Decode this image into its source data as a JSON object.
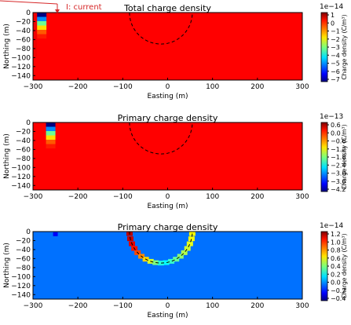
{
  "annotation": {
    "text": "I: current",
    "color": "#d62728"
  },
  "colors": {
    "orange_background": "#ff5a00",
    "dark_orange": "#e8400a",
    "light_blue_background": "#1e8cff",
    "dark_red": "#7f0000"
  },
  "colormap": "jet",
  "chart_data": [
    {
      "type": "heatmap",
      "title": "Total charge density",
      "xlabel": "Easting (m)",
      "ylabel": "Northing (m)",
      "xlim": [
        -300,
        300
      ],
      "ylim": [
        -150,
        0
      ],
      "xticks": [
        "−300",
        "−200",
        "−100",
        "0",
        "100",
        "200",
        "300"
      ],
      "yticks": [
        "0",
        "−20",
        "−40",
        "−60",
        "−80",
        "−100",
        "−120",
        "−140"
      ],
      "colorbar": {
        "label": "Charge density (C/m³)",
        "exponent": "1e−14",
        "range": [
          -7,
          1
        ],
        "ticks": [
          "1",
          "0",
          "−1",
          "−2",
          "−3",
          "−4",
          "−5",
          "−6",
          "−7"
        ]
      },
      "background_value": 0,
      "circle": {
        "center_x": -15,
        "center_y": 0,
        "radius": 70,
        "style": "dashed"
      },
      "features": [
        {
          "name": "current-source",
          "x": -270,
          "y": -10,
          "value": -7
        }
      ]
    },
    {
      "type": "heatmap",
      "title": "Primary charge density",
      "xlabel": "Easting (m)",
      "ylabel": "Northing (m)",
      "xlim": [
        -300,
        300
      ],
      "ylim": [
        -150,
        0
      ],
      "xticks": [
        "−300",
        "−200",
        "−100",
        "0",
        "100",
        "200",
        "300"
      ],
      "yticks": [
        "0",
        "−20",
        "−40",
        "−60",
        "−80",
        "−100",
        "−120",
        "−140"
      ],
      "colorbar": {
        "label": "Charge density (C/m³)",
        "exponent": "1e−13",
        "range": [
          -4.2,
          0.6
        ],
        "ticks": [
          "0.6",
          "0.0",
          "−0.6",
          "−1.2",
          "−1.8",
          "−2.4",
          "−3.0",
          "−3.6",
          "−4.2"
        ]
      },
      "background_value": 0,
      "circle": {
        "center_x": -15,
        "center_y": 0,
        "radius": 70,
        "style": "dashed"
      },
      "features": [
        {
          "name": "current-source",
          "x": -250,
          "y": -5,
          "value": -4.2
        }
      ]
    },
    {
      "type": "heatmap",
      "title": "Primary charge density",
      "xlabel": "Easting (m)",
      "ylabel": "Northing (m)",
      "xlim": [
        -300,
        300
      ],
      "ylim": [
        -150,
        0
      ],
      "xticks": [
        "−300",
        "−200",
        "−100",
        "0",
        "100",
        "200",
        "300"
      ],
      "yticks": [
        "0",
        "−20",
        "−40",
        "−60",
        "−80",
        "−100",
        "−120",
        "−140"
      ],
      "colorbar": {
        "label": "Charge density (C/m³)",
        "exponent": "1e−14",
        "range": [
          -0.4,
          1.3
        ],
        "ticks": [
          "1.2",
          "1.0",
          "0.8",
          "0.6",
          "0.4",
          "0.2",
          "0.0",
          "−0.2",
          "−0.4"
        ]
      },
      "background_value": 0,
      "circle": {
        "center_x": -15,
        "center_y": 0,
        "radius": 70,
        "style": "dashed"
      },
      "features": [
        {
          "name": "sphere-boundary-charge",
          "x": -15,
          "y": 0,
          "value": 1.2
        }
      ]
    }
  ]
}
